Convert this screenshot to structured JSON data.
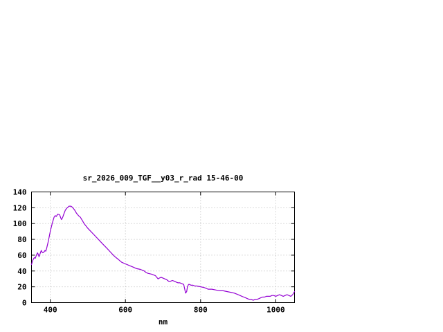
{
  "page": {
    "background": "#ffffff"
  },
  "chart_data": {
    "type": "line",
    "title": "sr_2026_009_TGF__y03_r_rad 15-46-00",
    "xlabel": "nm",
    "ylabel": "",
    "xlim": [
      350,
      1050
    ],
    "ylim": [
      0,
      140
    ],
    "x_ticks": [
      400,
      600,
      800,
      1000
    ],
    "y_ticks": [
      0,
      20,
      40,
      60,
      80,
      100,
      120,
      140
    ],
    "grid": true,
    "legend_position": "none",
    "line_color": "#9400d3",
    "series": [
      {
        "name": "sr_2026_009_TGF__y03_r_rad",
        "x": [
          350,
          353,
          356,
          358,
          360,
          363,
          366,
          368,
          370,
          373,
          376,
          378,
          380,
          383,
          386,
          388,
          390,
          395,
          400,
          405,
          410,
          413,
          416,
          420,
          425,
          428,
          430,
          433,
          436,
          440,
          445,
          450,
          455,
          458,
          460,
          465,
          470,
          475,
          480,
          485,
          490,
          495,
          500,
          510,
          520,
          530,
          540,
          550,
          560,
          570,
          575,
          580,
          585,
          590,
          600,
          610,
          615,
          620,
          630,
          640,
          650,
          655,
          660,
          670,
          680,
          687,
          690,
          695,
          700,
          710,
          715,
          720,
          725,
          730,
          735,
          740,
          745,
          750,
          755,
          760,
          763,
          765,
          768,
          770,
          775,
          780,
          785,
          790,
          800,
          810,
          815,
          820,
          830,
          840,
          850,
          860,
          870,
          880,
          890,
          895,
          900,
          905,
          910,
          915,
          920,
          925,
          930,
          935,
          940,
          945,
          950,
          955,
          960,
          965,
          970,
          975,
          980,
          985,
          990,
          995,
          1000,
          1005,
          1010,
          1015,
          1020,
          1025,
          1030,
          1035,
          1040,
          1045,
          1050
        ],
        "y": [
          48,
          53,
          56,
          57,
          56,
          60,
          63,
          61,
          58,
          62,
          66,
          64,
          63,
          64,
          66,
          65,
          68,
          78,
          90,
          100,
          108,
          110,
          109,
          112,
          111,
          107,
          105,
          108,
          112,
          117,
          120,
          122,
          122,
          121,
          120,
          117,
          113,
          110,
          108,
          104,
          100,
          97,
          94,
          89,
          84,
          79,
          74,
          69,
          64,
          59,
          57,
          55,
          53,
          51,
          49,
          47,
          46,
          45,
          43,
          42,
          40,
          38,
          37,
          36,
          34,
          30,
          31,
          32,
          31,
          29,
          27,
          27,
          28,
          27,
          26,
          25,
          25,
          24,
          23,
          12,
          14,
          20,
          23,
          23,
          22,
          22,
          21,
          21,
          20,
          19,
          18,
          17,
          17,
          16,
          15,
          15,
          14,
          13,
          12,
          11,
          10,
          9,
          8,
          7,
          6,
          5,
          4,
          4,
          3,
          4,
          4,
          5,
          6,
          7,
          7,
          8,
          8,
          8,
          9,
          9,
          8,
          9,
          10,
          9,
          8,
          9,
          10,
          9,
          8,
          10,
          14
        ]
      }
    ]
  }
}
